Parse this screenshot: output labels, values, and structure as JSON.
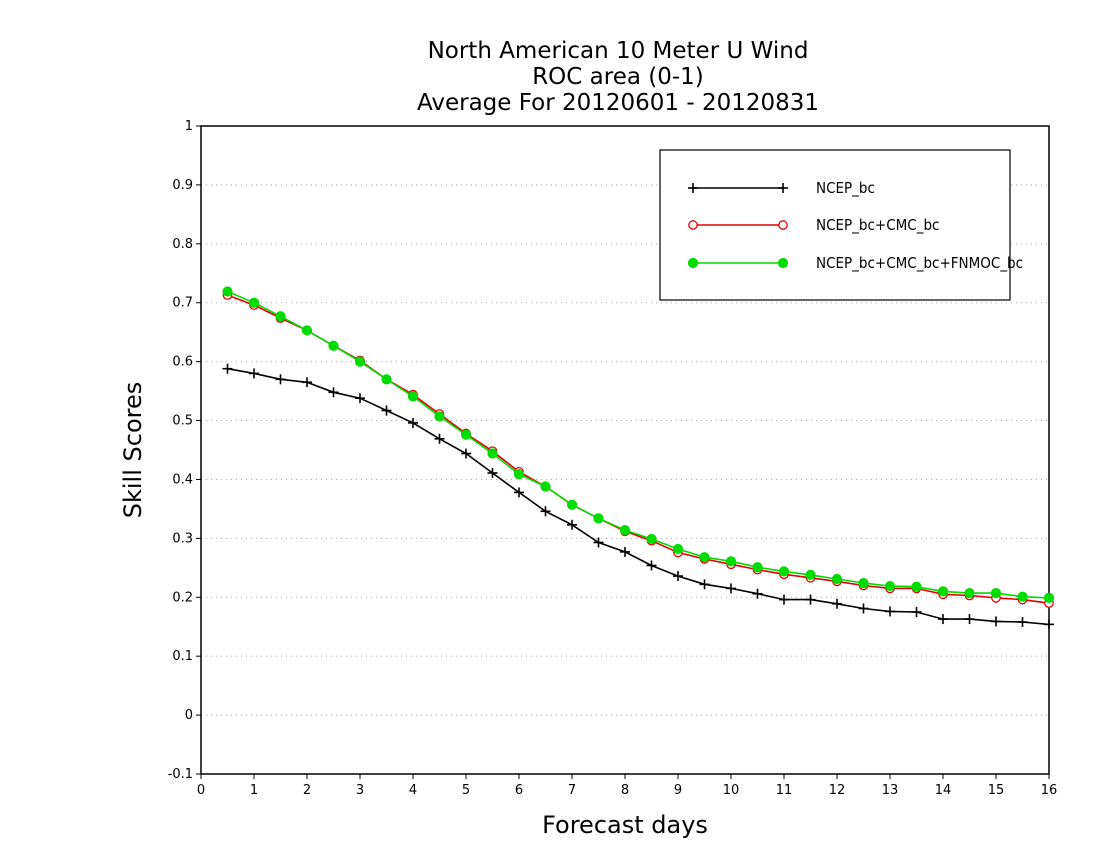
{
  "chart_data": {
    "type": "line",
    "title": [
      "North American 10 Meter U Wind",
      "ROC area (0-1)",
      "Average For 20120601 - 20120831"
    ],
    "xlabel": "Forecast days",
    "ylabel": "Skill Scores",
    "xlim": [
      0,
      16
    ],
    "ylim": [
      -0.1,
      1
    ],
    "xticks": [
      0,
      1,
      2,
      3,
      4,
      5,
      6,
      7,
      8,
      9,
      10,
      11,
      12,
      13,
      14,
      15,
      16
    ],
    "yticks": [
      -0.1,
      0,
      0.1,
      0.2,
      0.3,
      0.4,
      0.5,
      0.6,
      0.7,
      0.8,
      0.9,
      1
    ],
    "ytick_labels": [
      "-0.1",
      "0",
      "0.1",
      "0.2",
      "0.3",
      "0.4",
      "0.5",
      "0.6",
      "0.7",
      "0.8",
      "0.9",
      "1"
    ],
    "grid": "horizontal dotted",
    "legend_position": "top-right",
    "x": [
      0.5,
      1,
      1.5,
      2,
      2.5,
      3,
      3.5,
      4,
      4.5,
      5,
      5.5,
      6,
      6.5,
      7,
      7.5,
      8,
      8.5,
      9,
      9.5,
      10,
      10.5,
      11,
      11.5,
      12,
      12.5,
      13,
      13.5,
      14,
      14.5,
      15,
      15.5,
      16
    ],
    "series": [
      {
        "name": "NCEP_bc",
        "color": "#000000",
        "marker": "plus",
        "values": [
          0.588,
          0.58,
          0.57,
          0.565,
          0.548,
          0.538,
          0.517,
          0.496,
          0.469,
          0.444,
          0.411,
          0.378,
          0.346,
          0.323,
          0.293,
          0.277,
          0.254,
          0.236,
          0.222,
          0.215,
          0.206,
          0.196,
          0.196,
          0.189,
          0.181,
          0.176,
          0.175,
          0.163,
          0.163,
          0.159,
          0.158,
          0.154
        ]
      },
      {
        "name": "NCEP_bc+CMC_bc",
        "color": "#e60000",
        "marker": "open-circle",
        "values": [
          0.713,
          0.696,
          0.674,
          0.653,
          0.627,
          0.602,
          0.57,
          0.544,
          0.511,
          0.478,
          0.448,
          0.413,
          0.388,
          0.357,
          0.334,
          0.312,
          0.296,
          0.276,
          0.265,
          0.256,
          0.247,
          0.239,
          0.233,
          0.227,
          0.22,
          0.215,
          0.215,
          0.205,
          0.203,
          0.199,
          0.196,
          0.19
        ]
      },
      {
        "name": "NCEP_bc+CMC_bc+FNMOC_bc",
        "color": "#00dc00",
        "marker": "filled-circle",
        "values": [
          0.719,
          0.7,
          0.677,
          0.653,
          0.627,
          0.6,
          0.57,
          0.541,
          0.507,
          0.476,
          0.444,
          0.409,
          0.388,
          0.357,
          0.334,
          0.314,
          0.299,
          0.282,
          0.268,
          0.261,
          0.251,
          0.244,
          0.238,
          0.231,
          0.224,
          0.219,
          0.218,
          0.21,
          0.207,
          0.207,
          0.201,
          0.199
        ]
      }
    ]
  }
}
